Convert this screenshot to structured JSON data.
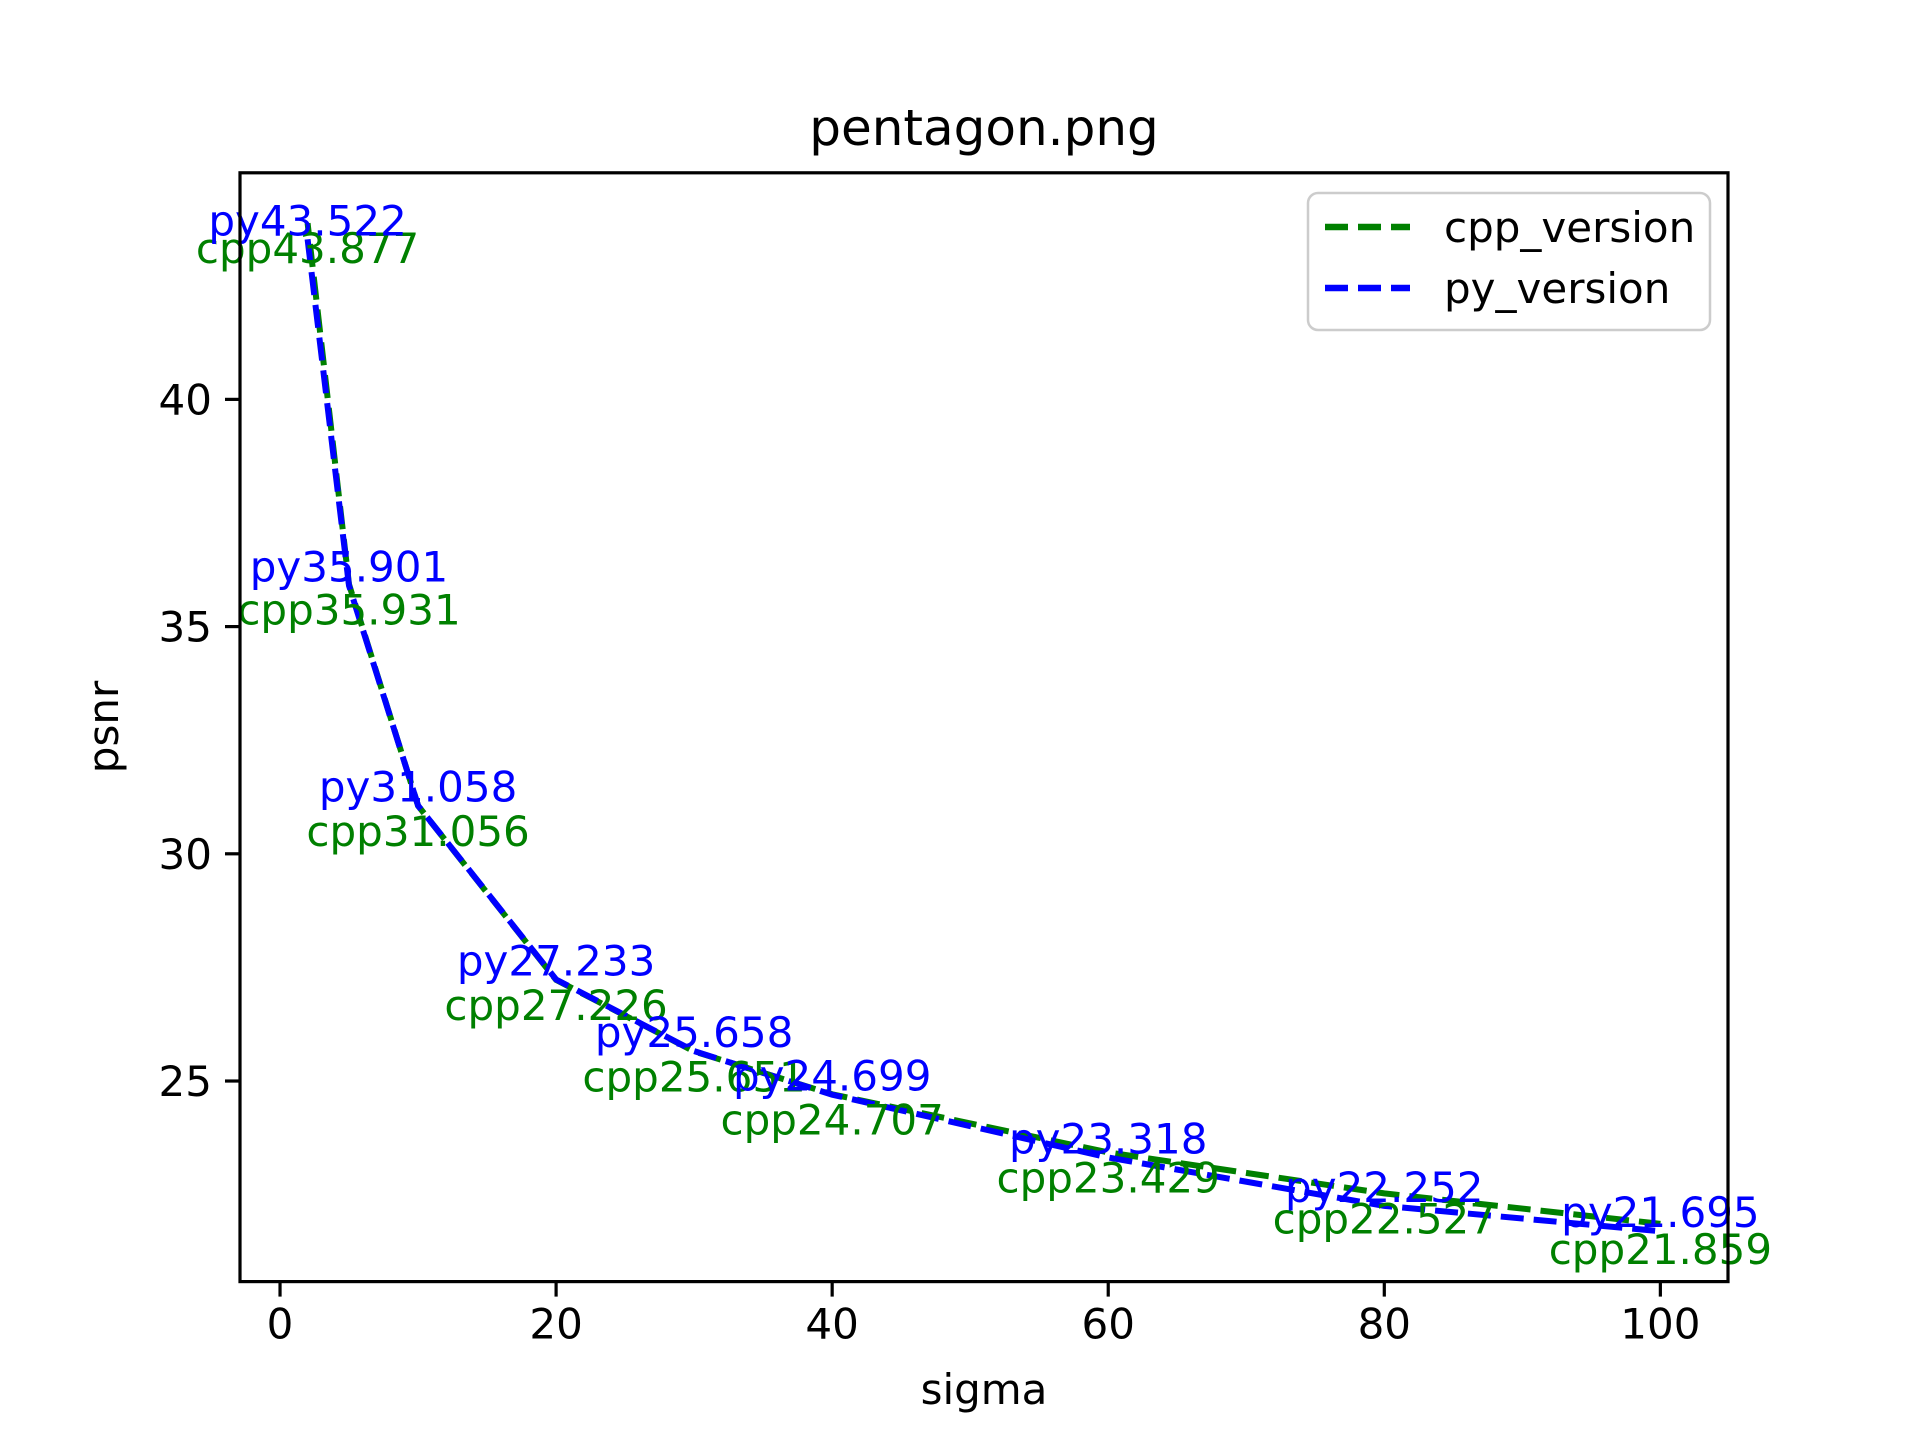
{
  "figure": {
    "background_color": "#ffffff",
    "axes_edge_color": "#000000"
  },
  "legend": {
    "position": "upper right",
    "border_color": "#cccccc",
    "entries": [
      {
        "label": "cpp_version",
        "color": "#008000"
      },
      {
        "label": "py_version",
        "color": "#0000ff"
      }
    ]
  },
  "chart_data": {
    "type": "line",
    "title": "pentagon.png",
    "xlabel": "sigma",
    "ylabel": "psnr",
    "x": [
      2,
      5,
      10,
      20,
      30,
      40,
      60,
      80,
      100
    ],
    "series": [
      {
        "name": "cpp_version",
        "color": "#008000",
        "linestyle": "dashed",
        "values": [
          43.877,
          35.931,
          31.056,
          27.226,
          25.651,
          24.707,
          23.429,
          22.527,
          21.859
        ],
        "point_labels": [
          "cpp43.877",
          "cpp35.931",
          "cpp31.056",
          "cpp27.226",
          "cpp25.651",
          "cpp24.707",
          "cpp23.429",
          "cpp22.527",
          "cpp21.859"
        ],
        "label_side": "below"
      },
      {
        "name": "py_version",
        "color": "#0000ff",
        "linestyle": "dashed",
        "values": [
          43.522,
          35.901,
          31.058,
          27.233,
          25.658,
          24.699,
          23.318,
          22.252,
          21.695
        ],
        "point_labels": [
          "py43.522",
          "py35.901",
          "py31.058",
          "py27.233",
          "py25.658",
          "py24.699",
          "py23.318",
          "py22.252",
          "py21.695"
        ],
        "label_side": "above"
      }
    ],
    "xlim": [
      -2.9,
      104.9
    ],
    "ylim": [
      20.586,
      44.986
    ],
    "xticks": [
      0,
      20,
      40,
      60,
      80,
      100
    ],
    "yticks": [
      25,
      30,
      35,
      40
    ],
    "grid": false,
    "legend_position": "upper right"
  }
}
